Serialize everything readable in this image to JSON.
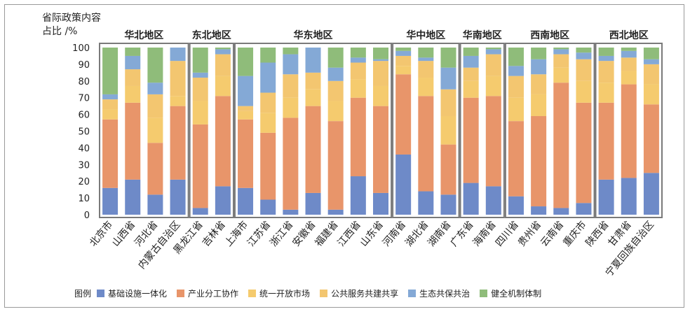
{
  "chart_data": {
    "type": "bar",
    "stacked": true,
    "ylabel_lines": [
      "省际政策内容",
      "占比 /%"
    ],
    "ylim": [
      0,
      100
    ],
    "yticks": [
      0,
      10,
      20,
      30,
      40,
      50,
      60,
      70,
      80,
      90,
      100
    ],
    "legend_title": "图例",
    "legend_position": "bottom",
    "regions": [
      {
        "name": "华北地区",
        "count": 4
      },
      {
        "name": "东北地区",
        "count": 2
      },
      {
        "name": "华东地区",
        "count": 7
      },
      {
        "name": "华中地区",
        "count": 3
      },
      {
        "name": "华南地区",
        "count": 2
      },
      {
        "name": "西南地区",
        "count": 4
      },
      {
        "name": "西北地区",
        "count": 3
      }
    ],
    "categories": [
      "北京市",
      "山西省",
      "河北省",
      "内蒙古自治区",
      "黑龙江省",
      "吉林省",
      "上海市",
      "江苏省",
      "浙江省",
      "安徽省",
      "福建省",
      "江西省",
      "山东省",
      "河南省",
      "湖北省",
      "湖南省",
      "广东省",
      "海南省",
      "四川省",
      "贵州省",
      "云南省",
      "重庆市",
      "陕西省",
      "甘肃省",
      "宁夏回族自治区"
    ],
    "series": [
      {
        "name": "基础设施一体化",
        "color": "#6E8AC8",
        "values": [
          16,
          21,
          12,
          21,
          4,
          17,
          16,
          9,
          3,
          13,
          3,
          23,
          13,
          36,
          14,
          12,
          19,
          17,
          11,
          5,
          4,
          7,
          21,
          22,
          25
        ]
      },
      {
        "name": "产业分工协作",
        "color": "#E8956A",
        "values": [
          41,
          46,
          31,
          44,
          50,
          54,
          41,
          40,
          55,
          52,
          53,
          47,
          52,
          48,
          57,
          30,
          51,
          54,
          45,
          54,
          75,
          60,
          46,
          56,
          41
        ]
      },
      {
        "name": "统一开放市场",
        "color": "#F5CB6E",
        "values": [
          6,
          10,
          15,
          6,
          14,
          12,
          5,
          12,
          12,
          10,
          12,
          11,
          12,
          5,
          11,
          17,
          10,
          12,
          14,
          13,
          9,
          13,
          12,
          8,
          12
        ]
      },
      {
        "name": "公共服务共建共享",
        "color": "#F3C670",
        "values": [
          6,
          10,
          14,
          21,
          14,
          13,
          3,
          12,
          14,
          10,
          12,
          10,
          15,
          6,
          10,
          16,
          8,
          13,
          13,
          12,
          8,
          13,
          13,
          8,
          12
        ]
      },
      {
        "name": "生态共保共治",
        "color": "#84A9D6",
        "values": [
          3,
          8,
          7,
          8,
          3,
          3,
          18,
          18,
          12,
          15,
          8,
          3,
          1,
          3,
          2,
          13,
          7,
          3,
          6,
          9,
          3,
          4,
          3,
          4,
          3
        ]
      },
      {
        "name": "健全机制体制",
        "color": "#8FBC7A",
        "values": [
          28,
          5,
          21,
          0,
          15,
          1,
          17,
          9,
          4,
          0,
          12,
          6,
          7,
          2,
          6,
          12,
          5,
          1,
          11,
          7,
          1,
          3,
          5,
          2,
          7
        ]
      }
    ]
  }
}
